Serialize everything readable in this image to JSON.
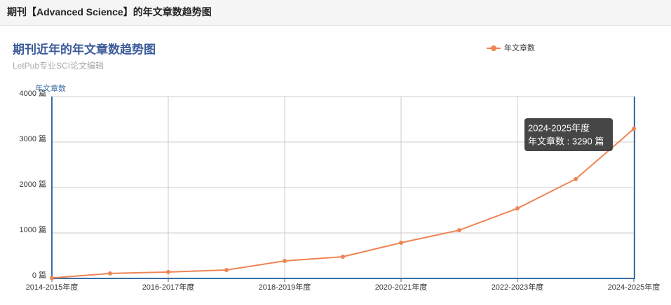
{
  "header": {
    "title": "期刊【Advanced Science】的年文章数趋势图"
  },
  "chart_data": {
    "type": "line",
    "title": "期刊近年的年文章数趋势图",
    "subtitle": "LetPub专业SCI论文编辑",
    "y_axis_label": "年文章数",
    "categories": [
      "2014-2015年度",
      null,
      "2016-2017年度",
      null,
      "2018-2019年度",
      null,
      "2020-2021年度",
      null,
      "2022-2023年度",
      null,
      "2024-2025年度"
    ],
    "series": [
      {
        "name": "年文章数",
        "color": "#ee8455",
        "values": [
          10,
          110,
          140,
          185,
          385,
          477,
          785,
          1060,
          1540,
          2185,
          3290
        ]
      }
    ],
    "ylim": [
      0,
      4000
    ],
    "yticks": [
      {
        "value": 0,
        "label": "0 篇"
      },
      {
        "value": 1000,
        "label": "1000 篇"
      },
      {
        "value": 2000,
        "label": "2000 篇"
      },
      {
        "value": 3000,
        "label": "3000 篇"
      },
      {
        "value": 4000,
        "label": "4000 篇"
      }
    ],
    "grid": true,
    "legend": "top-right",
    "tooltip": {
      "title": "2024-2025年度",
      "text": "年文章数 : 3290 篇"
    }
  }
}
